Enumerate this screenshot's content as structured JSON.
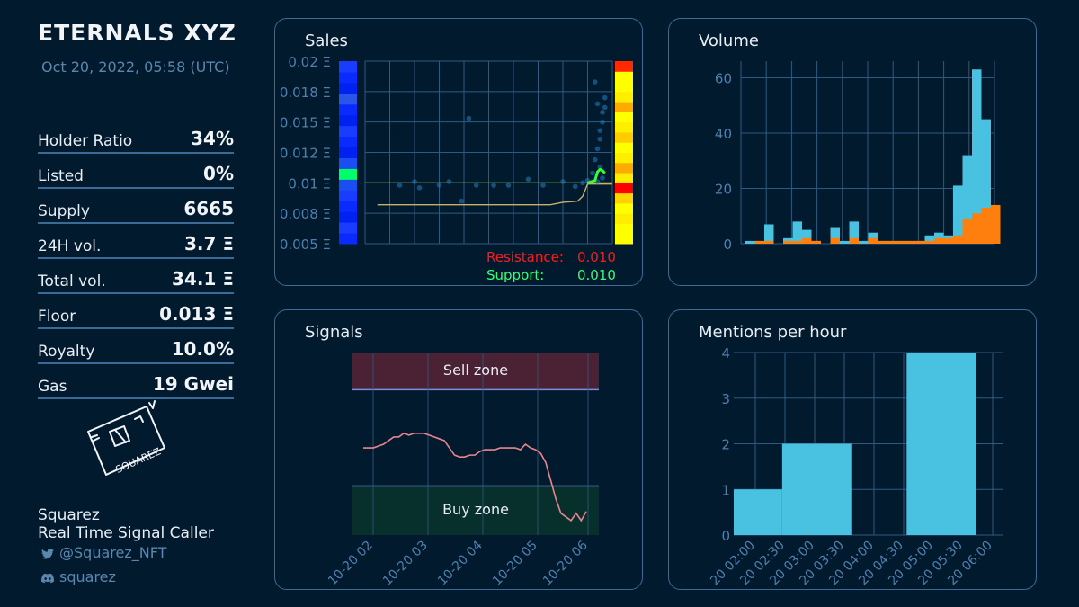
{
  "header": {
    "title": "ETERNALS XYZ",
    "date": "Oct 20, 2022, 05:58 (UTC)"
  },
  "stats": [
    {
      "label": "Holder Ratio",
      "value": "34%"
    },
    {
      "label": "Listed",
      "value": "0%"
    },
    {
      "label": "Supply",
      "value": "6665"
    },
    {
      "label": "24H vol.",
      "value": "3.7 Ξ"
    },
    {
      "label": "Total vol.",
      "value": "34.1 Ξ"
    },
    {
      "label": "Floor",
      "value": "0.013 Ξ"
    },
    {
      "label": "Royalty",
      "value": "10.0%"
    },
    {
      "label": "Gas",
      "value": "19 Gwei"
    }
  ],
  "logo": {
    "icon": "squarez-logo-icon",
    "text": "SQUAREZ"
  },
  "footer": {
    "name": "Squarez",
    "tagline": "Real Time Signal Caller",
    "twitter": "@Squarez_NFT",
    "discord": "squarez"
  },
  "colors": {
    "background": "#021a2e",
    "panel_border": "#3b6a96",
    "accent": "#49c1e1",
    "orange": "#ff7f0e",
    "resistance": "#ff1a1a",
    "support": "#33ff77"
  },
  "chart_data": [
    {
      "type": "scatter",
      "title": "Sales",
      "yticks": [
        "0.005 Ξ",
        "0.008 Ξ",
        "0.01 Ξ",
        "0.012 Ξ",
        "0.015 Ξ",
        "0.018 Ξ",
        "0.02 Ξ"
      ],
      "ylim": [
        0.005,
        0.02
      ],
      "xlim": [
        0,
        100
      ],
      "grid": true,
      "points": [
        [
          14,
          0.0098
        ],
        [
          20,
          0.0101
        ],
        [
          22,
          0.0096
        ],
        [
          30,
          0.0098
        ],
        [
          34,
          0.0101
        ],
        [
          39,
          0.0085
        ],
        [
          42,
          0.0153
        ],
        [
          45,
          0.0098
        ],
        [
          52,
          0.0098
        ],
        [
          58,
          0.0098
        ],
        [
          66,
          0.0103
        ],
        [
          72,
          0.0098
        ],
        [
          80,
          0.0101
        ],
        [
          85,
          0.0097
        ],
        [
          88,
          0.01
        ],
        [
          90,
          0.0102
        ],
        [
          92,
          0.0108
        ],
        [
          93,
          0.0119
        ],
        [
          94,
          0.0128
        ],
        [
          95,
          0.0136
        ],
        [
          95,
          0.0143
        ],
        [
          96,
          0.015
        ],
        [
          96,
          0.0158
        ],
        [
          97,
          0.0162
        ],
        [
          97,
          0.017
        ],
        [
          93,
          0.0183
        ],
        [
          94,
          0.0165
        ],
        [
          95,
          0.0113
        ],
        [
          96,
          0.0104
        ],
        [
          94,
          0.0101
        ]
      ],
      "resistance_value": 0.01,
      "support_value": 0.01,
      "floor_line": [
        [
          5,
          0.0082
        ],
        [
          40,
          0.0082
        ],
        [
          75,
          0.0082
        ],
        [
          80,
          0.0084
        ],
        [
          86,
          0.0085
        ],
        [
          88,
          0.0089
        ],
        [
          90,
          0.0099
        ],
        [
          100,
          0.0099
        ]
      ],
      "green_line": [
        [
          90,
          0.01
        ],
        [
          93,
          0.0102
        ],
        [
          94,
          0.0109
        ],
        [
          95,
          0.0111
        ],
        [
          96,
          0.011
        ],
        [
          97,
          0.0108
        ]
      ],
      "left_band": [
        0.005,
        0.006,
        0.007,
        0.008,
        0.009,
        0.0095,
        0.01,
        0.0105,
        0.011,
        0.012,
        0.013,
        0.014,
        0.015,
        0.016,
        0.017,
        0.018,
        0.019,
        0.02
      ],
      "right_band": [
        "#ffff00",
        "#ffff00",
        "#ffee00",
        "#ffff00",
        "#ffd400",
        "#ff0000",
        "#ffee00",
        "#ffaa00",
        "#ffee00",
        "#ffff00",
        "#ffcc00",
        "#ffee00",
        "#ffff00",
        "#ffaa00",
        "#ffee00",
        "#ffff00",
        "#ffff00",
        "#ff2a00"
      ],
      "legend": [
        {
          "label": "Resistance:",
          "value": "0.010"
        },
        {
          "label": "Support:",
          "value": "0.010"
        }
      ]
    },
    {
      "type": "bar",
      "title": "Volume",
      "yticks": [
        0,
        20,
        40,
        60
      ],
      "ylim": [
        0,
        66
      ],
      "series": [
        {
          "name": "",
          "values": [
            0,
            1,
            1,
            0,
            1,
            1,
            2,
            1,
            0,
            2,
            0,
            2,
            0,
            2,
            1,
            1,
            1,
            1,
            1,
            1,
            2,
            2,
            3,
            9,
            11,
            13,
            14
          ]
        },
        {
          "name": "",
          "values": [
            1,
            1,
            7,
            0,
            2,
            8,
            5,
            1,
            0,
            6,
            1,
            8,
            1,
            4,
            1,
            1,
            1,
            1,
            1,
            3,
            4,
            3,
            21,
            32,
            63,
            45,
            0
          ]
        }
      ]
    },
    {
      "type": "line",
      "title": "Signals",
      "xticks": [
        "10-20 02",
        "10-20 03",
        "10-20 04",
        "10-20 05",
        "10-20 06"
      ],
      "zones": [
        {
          "label": "Sell zone"
        },
        {
          "label": "Buy zone"
        }
      ],
      "ylim": [
        0,
        100
      ],
      "sell_level": 80,
      "buy_level": 27,
      "values": [
        48,
        48,
        48,
        49,
        50,
        52,
        54,
        54,
        56,
        55,
        56,
        56,
        56,
        55,
        54,
        53,
        52,
        48,
        44,
        43,
        43,
        44,
        44,
        46,
        47,
        47,
        47,
        48,
        48,
        48,
        48,
        47,
        50,
        48,
        47,
        45,
        40,
        30,
        20,
        12,
        10,
        8,
        12,
        8,
        13
      ]
    },
    {
      "type": "bar",
      "title": "Mentions per hour",
      "yticks": [
        0,
        1,
        2,
        3,
        4
      ],
      "ylim": [
        0,
        4
      ],
      "xticks": [
        "20 02:00",
        "20 02:30",
        "20 03:00",
        "20 03:30",
        "20 04:00",
        "20 04:30",
        "20 05:00",
        "20 05:30",
        "20 06:00"
      ],
      "bars": [
        {
          "start": 0,
          "end": 0.35,
          "value": 1
        },
        {
          "start": 0.35,
          "end": 0.85,
          "value": 2
        },
        {
          "start": 1.25,
          "end": 1.75,
          "value": 4
        }
      ],
      "xlim": [
        0,
        1.95
      ]
    }
  ]
}
